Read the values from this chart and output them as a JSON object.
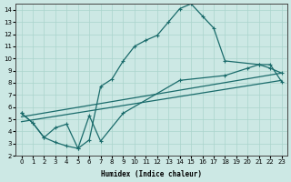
{
  "xlabel": "Humidex (Indice chaleur)",
  "background_color": "#cce8e4",
  "grid_color": "#aad4cc",
  "line_color": "#1a6b6b",
  "xlim": [
    -0.5,
    23.5
  ],
  "ylim": [
    2,
    14.5
  ],
  "xticks": [
    0,
    1,
    2,
    3,
    4,
    5,
    6,
    7,
    8,
    9,
    10,
    11,
    12,
    13,
    14,
    15,
    16,
    17,
    18,
    19,
    20,
    21,
    22,
    23
  ],
  "yticks": [
    2,
    3,
    4,
    5,
    6,
    7,
    8,
    9,
    10,
    11,
    12,
    13,
    14
  ],
  "line1_x": [
    0,
    1,
    2,
    3,
    4,
    5,
    6,
    7,
    8,
    9,
    10,
    11,
    12,
    13,
    14,
    15,
    16,
    17,
    18,
    21,
    22,
    23
  ],
  "line1_y": [
    5.5,
    4.7,
    3.5,
    3.1,
    2.8,
    2.6,
    3.3,
    7.7,
    8.3,
    9.8,
    11.0,
    11.5,
    11.9,
    13.0,
    14.1,
    14.5,
    13.5,
    12.5,
    9.8,
    9.5,
    9.2,
    8.8
  ],
  "line2_x": [
    0,
    1,
    2,
    3,
    4,
    5,
    6,
    7,
    9,
    14,
    18,
    20,
    21,
    22,
    23
  ],
  "line2_y": [
    5.5,
    4.7,
    3.5,
    4.3,
    4.6,
    2.6,
    5.3,
    3.2,
    5.5,
    8.2,
    8.6,
    9.2,
    9.5,
    9.5,
    8.1
  ],
  "line3_x": [
    0,
    23
  ],
  "line3_y": [
    4.8,
    8.2
  ],
  "line4_x": [
    0,
    23
  ],
  "line4_y": [
    5.2,
    8.8
  ]
}
